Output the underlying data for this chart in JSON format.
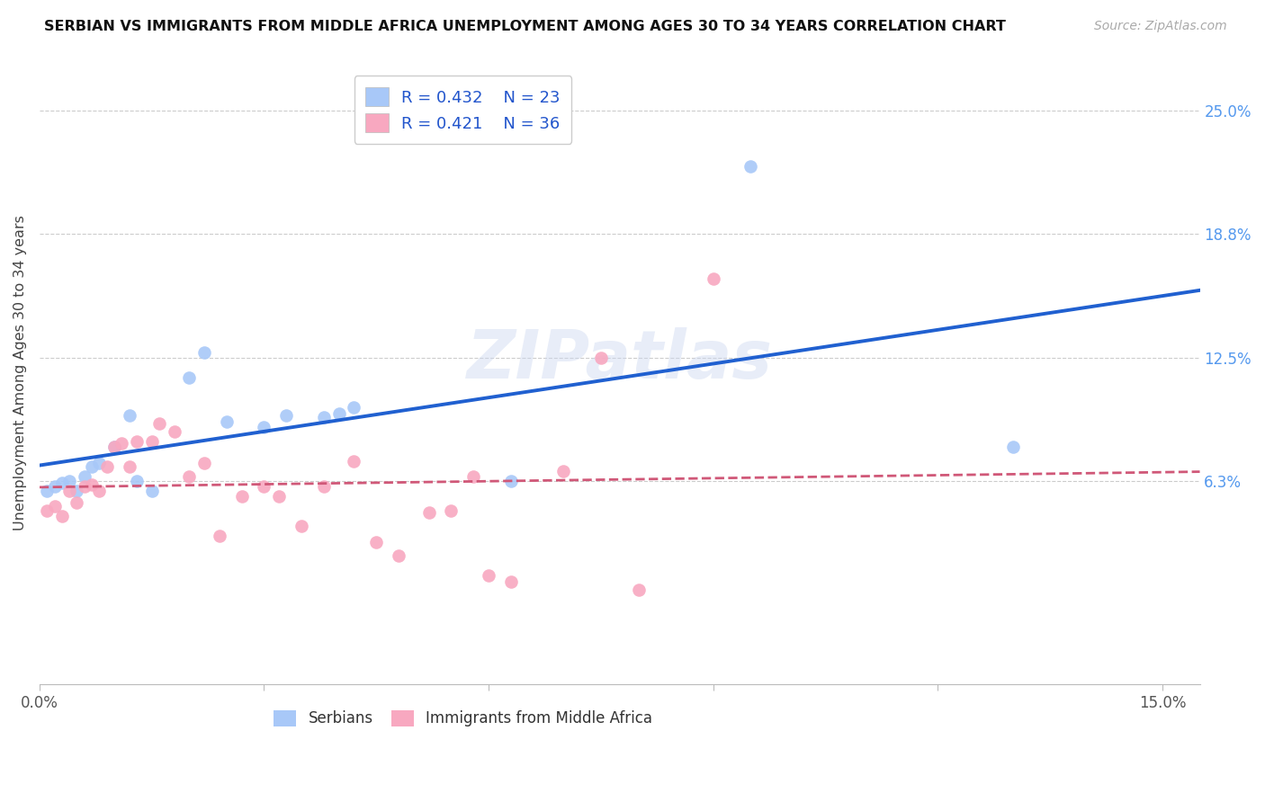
{
  "title": "SERBIAN VS IMMIGRANTS FROM MIDDLE AFRICA UNEMPLOYMENT AMONG AGES 30 TO 34 YEARS CORRELATION CHART",
  "source": "Source: ZipAtlas.com",
  "ylabel": "Unemployment Among Ages 30 to 34 years",
  "xlim": [
    0.0,
    0.155
  ],
  "ylim": [
    -0.04,
    0.275
  ],
  "xtick_positions": [
    0.0,
    0.03,
    0.06,
    0.09,
    0.12,
    0.15
  ],
  "xtick_labels": [
    "0.0%",
    "",
    "",
    "",
    "",
    "15.0%"
  ],
  "ytick_vals_right": [
    0.063,
    0.125,
    0.188,
    0.25
  ],
  "ytick_labels_right": [
    "6.3%",
    "12.5%",
    "18.8%",
    "25.0%"
  ],
  "R_serbian": 0.432,
  "N_serbian": 23,
  "R_immigrant": 0.421,
  "N_immigrant": 36,
  "serbian_color": "#a8c8f8",
  "immigrant_color": "#f8a8c0",
  "trendline_serbian_color": "#2060d0",
  "trendline_immigrant_color": "#d05878",
  "watermark": "ZIPatlas",
  "legend_labels": [
    "Serbians",
    "Immigrants from Middle Africa"
  ],
  "serbian_x": [
    0.001,
    0.002,
    0.003,
    0.004,
    0.005,
    0.006,
    0.007,
    0.008,
    0.01,
    0.012,
    0.013,
    0.015,
    0.02,
    0.022,
    0.025,
    0.03,
    0.033,
    0.038,
    0.04,
    0.042,
    0.063,
    0.095,
    0.13
  ],
  "serbian_y": [
    0.058,
    0.06,
    0.062,
    0.063,
    0.058,
    0.065,
    0.07,
    0.072,
    0.08,
    0.096,
    0.063,
    0.058,
    0.115,
    0.128,
    0.093,
    0.09,
    0.096,
    0.095,
    0.097,
    0.1,
    0.063,
    0.222,
    0.08
  ],
  "immigrant_x": [
    0.001,
    0.002,
    0.003,
    0.004,
    0.005,
    0.006,
    0.007,
    0.008,
    0.009,
    0.01,
    0.011,
    0.012,
    0.013,
    0.015,
    0.016,
    0.018,
    0.02,
    0.022,
    0.024,
    0.027,
    0.03,
    0.032,
    0.035,
    0.038,
    0.042,
    0.045,
    0.048,
    0.052,
    0.055,
    0.058,
    0.06,
    0.063,
    0.07,
    0.075,
    0.08,
    0.09
  ],
  "immigrant_y": [
    0.048,
    0.05,
    0.045,
    0.058,
    0.052,
    0.06,
    0.061,
    0.058,
    0.07,
    0.08,
    0.082,
    0.07,
    0.083,
    0.083,
    0.092,
    0.088,
    0.065,
    0.072,
    0.035,
    0.055,
    0.06,
    0.055,
    0.04,
    0.06,
    0.073,
    0.032,
    0.025,
    0.047,
    0.048,
    0.065,
    0.015,
    0.012,
    0.068,
    0.125,
    0.008,
    0.165
  ]
}
